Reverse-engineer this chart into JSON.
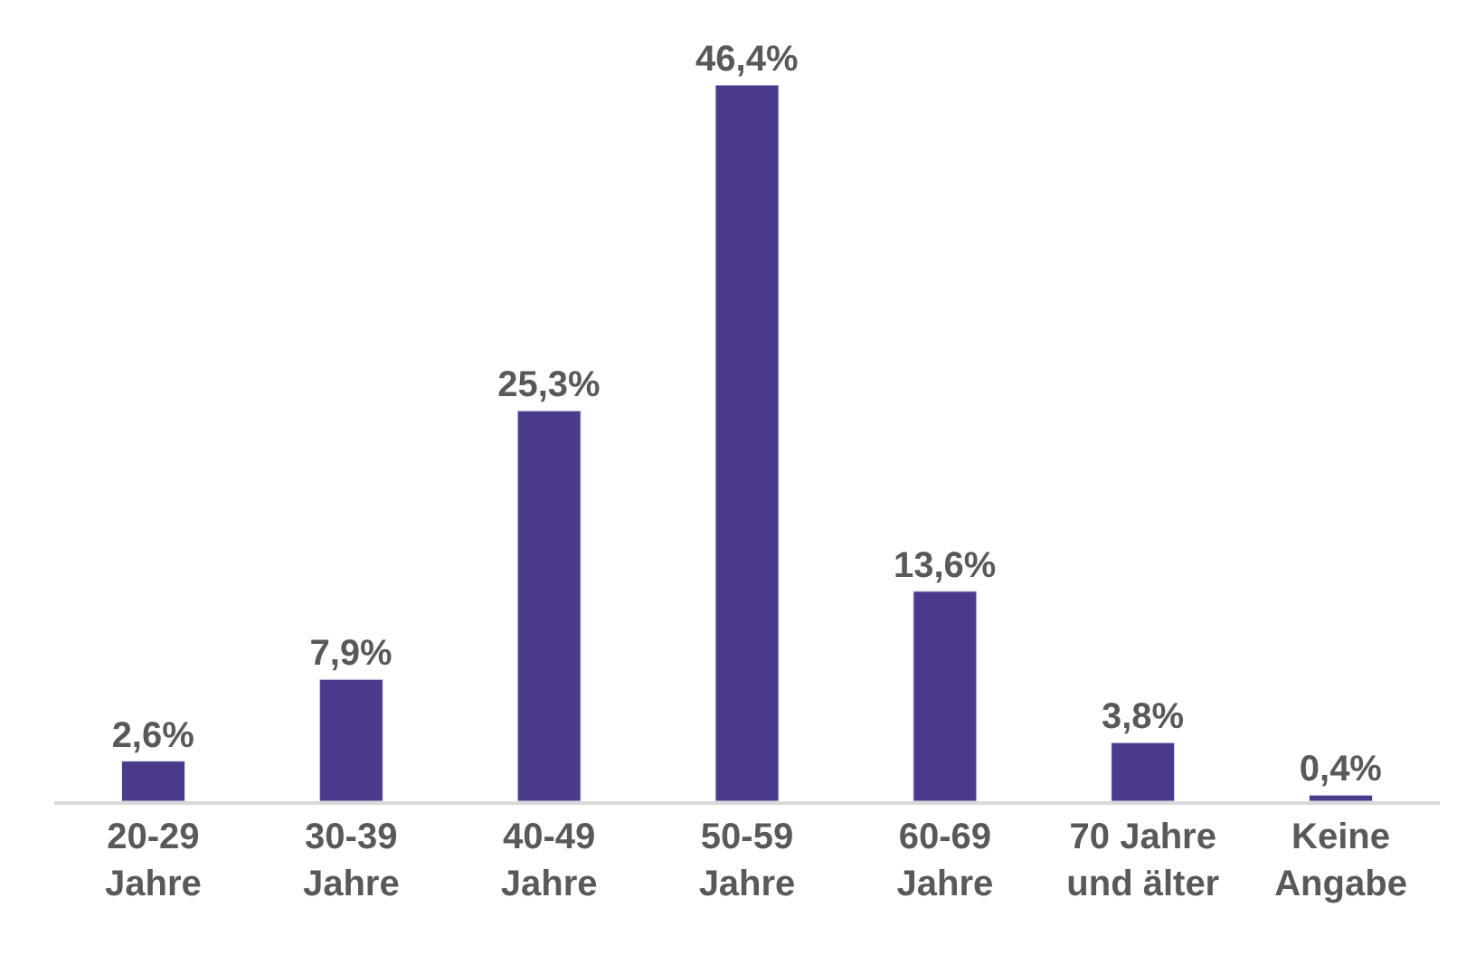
{
  "chart_data": {
    "type": "bar",
    "categories": [
      "20-29\nJahre",
      "30-39\nJahre",
      "40-49\nJahre",
      "50-59\nJahre",
      "60-69\nJahre",
      "70 Jahre\nund älter",
      "Keine\nAngabe"
    ],
    "values": [
      2.6,
      7.9,
      25.3,
      46.4,
      13.6,
      3.8,
      0.4
    ],
    "value_labels": [
      "2,6%",
      "7,9%",
      "25,3%",
      "46,4%",
      "13,6%",
      "3,8%",
      "0,4%"
    ],
    "color": "#4b3a8c"
  }
}
